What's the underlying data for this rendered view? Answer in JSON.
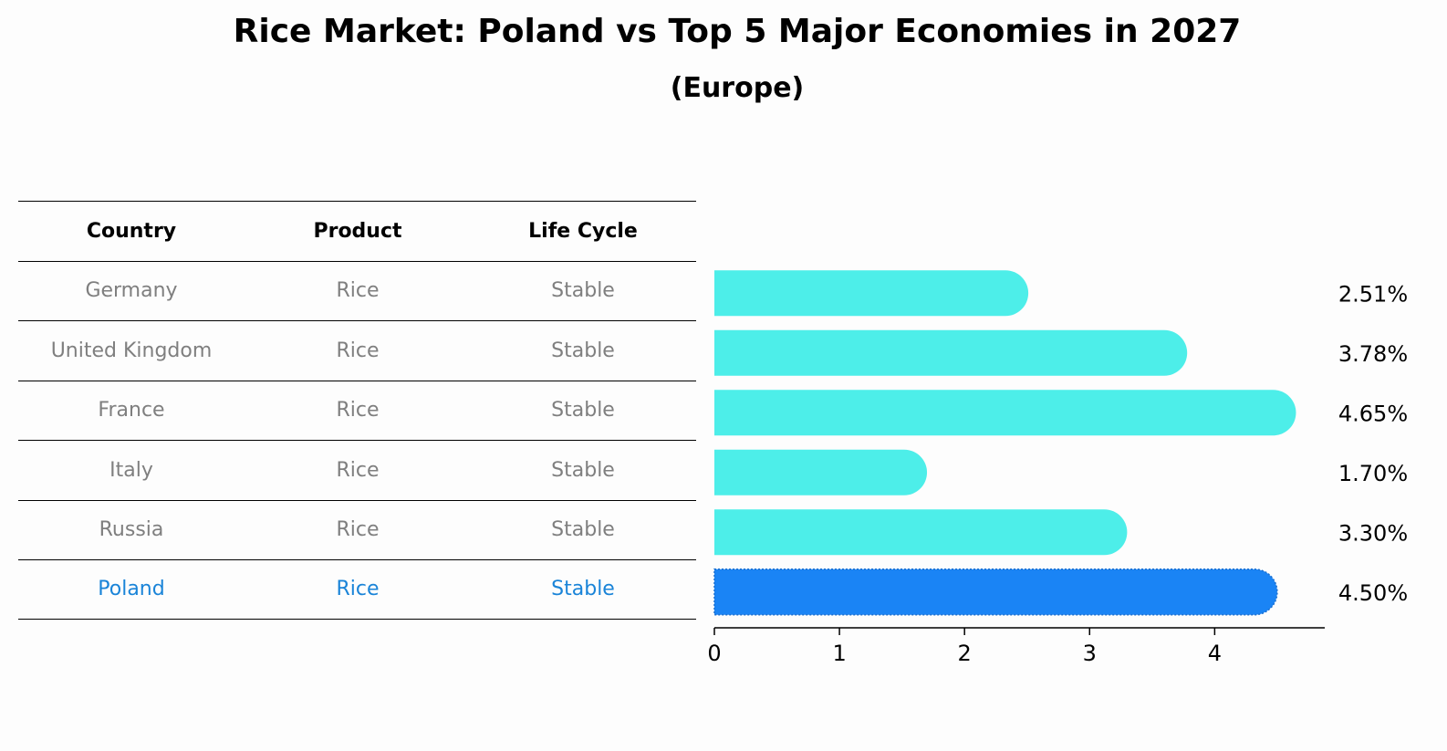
{
  "chart_data": {
    "type": "bar",
    "title": "Rice Market: Poland vs Top 5 Major Economies in 2027",
    "subtitle": "(Europe)",
    "orientation": "horizontal",
    "table": {
      "columns": [
        "Country",
        "Product",
        "Life Cycle"
      ],
      "rows": [
        [
          "Germany",
          "Rice",
          "Stable"
        ],
        [
          "United Kingdom",
          "Rice",
          "Stable"
        ],
        [
          "France",
          "Rice",
          "Stable"
        ],
        [
          "Italy",
          "Rice",
          "Stable"
        ],
        [
          "Russia",
          "Rice",
          "Stable"
        ],
        [
          "Poland",
          "Rice",
          "Stable"
        ]
      ],
      "highlight_row": 5
    },
    "categories": [
      "Germany",
      "United Kingdom",
      "France",
      "Italy",
      "Russia",
      "Poland"
    ],
    "values": [
      2.51,
      3.78,
      4.65,
      1.7,
      3.3,
      4.5
    ],
    "value_labels": [
      "2.51%",
      "3.78%",
      "4.65%",
      "1.70%",
      "3.30%",
      "4.50%"
    ],
    "xticks": [
      "0",
      "1",
      "2",
      "3",
      "4"
    ],
    "xlim": [
      0,
      4.88
    ],
    "grid": false,
    "colors": {
      "default_bar": "#4deee9",
      "highlight_bar": "#1a84f5",
      "muted_text": "#7f7f7f",
      "highlight_text": "#1a84d8"
    }
  }
}
